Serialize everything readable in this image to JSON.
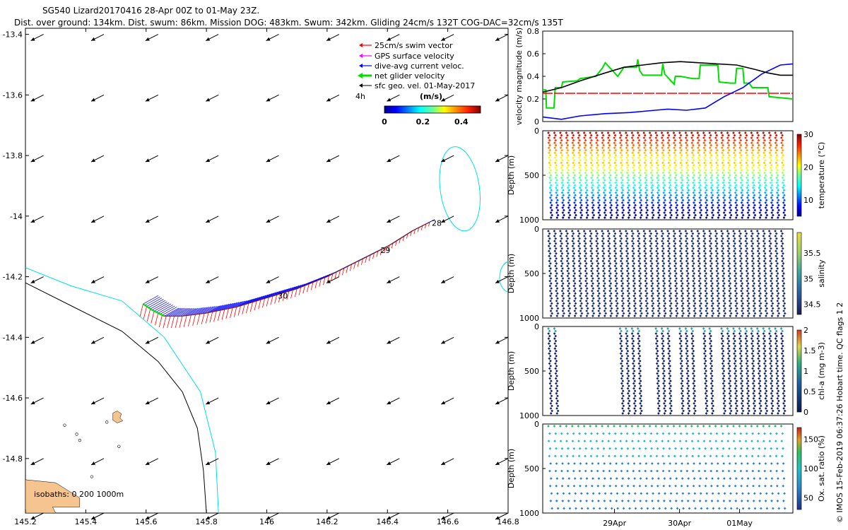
{
  "header": {
    "title_line1": "SG540 Lizard20170416 28-Apr 00Z to 01-May 23Z.",
    "title_line2": "Dist. over ground: 134km. Dist. swum: 86km. Mission DOG: 483km. Swum: 342km. Gliding 24cm/s 132T COG-DAC=32cm/s 135T"
  },
  "colors": {
    "swim": "#ff0000",
    "gps": "#ff00ff",
    "dac": "#0000ff",
    "net": "#00dd00",
    "geo": "#000000",
    "isobath_200": "#000000",
    "isobath_1000": "#00e0e0",
    "land": "#f5c48f"
  },
  "chart_data": [
    {
      "type": "scatter",
      "name": "track-map",
      "title": "SG540 Lizard20170416 28-Apr 00Z to 01-May 23Z.",
      "xlim": [
        145.2,
        146.8
      ],
      "ylim": [
        -14.98,
        -13.38
      ],
      "x_ticks": [
        145.2,
        145.4,
        145.6,
        145.8,
        146,
        146.2,
        146.4,
        146.6,
        146.8
      ],
      "x_tick_labels": [
        "145.2",
        "145.4",
        "145.6",
        "145.8",
        "146",
        "146.2",
        "146.4",
        "146.6",
        "146.8"
      ],
      "y_ticks": [
        -13.4,
        -13.6,
        -13.8,
        -14,
        -14.2,
        -14.4,
        -14.6,
        -14.8
      ],
      "y_tick_labels": [
        "-13.4",
        "-13.6",
        "-13.8",
        "-14",
        "-14.2",
        "-14.4",
        "-14.6",
        "-14.8"
      ],
      "legend": {
        "items": [
          "25cm/s swim vector",
          "GPS surface velocity",
          "dive-avg current veloc.",
          "net glider velocity",
          "sfc geo. vel. 01-May-2017"
        ],
        "interval_label": "4h",
        "colorbar_unit": "(m/s)",
        "colorbar_ticks": [
          "0",
          "0.2",
          "0.4"
        ],
        "colorbar_range": [
          0,
          0.5
        ]
      },
      "isobaths_label": "isobaths: 0   200  1000m",
      "day_labels": [
        {
          "text": "28",
          "lon": 146.54,
          "lat": -14.02
        },
        {
          "text": "29",
          "lon": 146.37,
          "lat": -14.11
        },
        {
          "text": "30",
          "lon": 146.03,
          "lat": -14.26
        }
      ],
      "track": {
        "lon": [
          146.54,
          146.48,
          146.4,
          146.3,
          146.2,
          146.1,
          146.0,
          145.9,
          145.8,
          145.72,
          145.66,
          145.62,
          145.59
        ],
        "lat": [
          -14.02,
          -14.05,
          -14.1,
          -14.15,
          -14.2,
          -14.24,
          -14.27,
          -14.3,
          -14.32,
          -14.33,
          -14.33,
          -14.31,
          -14.29
        ]
      },
      "isobath_200": {
        "lon": [
          145.2,
          145.36,
          145.52,
          145.64,
          145.72,
          145.77,
          145.79,
          145.8
        ],
        "lat": [
          -14.22,
          -14.3,
          -14.38,
          -14.48,
          -14.58,
          -14.7,
          -14.84,
          -14.98
        ]
      },
      "isobath_1000": {
        "lon": [
          145.2,
          145.35,
          145.52,
          145.66,
          145.78,
          145.83,
          145.84
        ],
        "lat": [
          -14.17,
          -14.23,
          -14.28,
          -14.4,
          -14.58,
          -14.78,
          -14.98
        ]
      },
      "isobath_reef_ellipse": {
        "lon": 146.64,
        "lat": -13.91,
        "rlon": 0.065,
        "rlat": 0.14
      },
      "geo_vel_grid": {
        "lons": [
          145.26,
          145.46,
          145.64,
          145.84,
          146.04,
          146.24,
          146.44,
          146.62,
          146.8
        ],
        "lats": [
          -13.4,
          -13.6,
          -13.8,
          -14.0,
          -14.2,
          -14.4,
          -14.6,
          -14.8,
          -14.98
        ],
        "u": -0.12,
        "v": -0.06
      }
    },
    {
      "type": "line",
      "name": "velocity-magnitude",
      "ylabel": "velocity magnitude (m/s)",
      "ylim": [
        0,
        0.8
      ],
      "y_ticks": [
        "0",
        "0.2",
        "0.4",
        "0.6",
        "0.8"
      ],
      "xlim": [
        0,
        4
      ],
      "series": [
        {
          "name": "net",
          "color": "#00dd00",
          "x": [
            0,
            0.05,
            0.06,
            0.18,
            0.2,
            0.3,
            0.32,
            0.55,
            0.6,
            0.85,
            0.95,
            1.0,
            1.2,
            1.3,
            1.5,
            1.52,
            1.55,
            1.6,
            1.9,
            1.92,
            1.95,
            2.1,
            2.12,
            2.2,
            2.4,
            2.5,
            2.52,
            2.8,
            2.82,
            3.0,
            3.08,
            3.1,
            3.2,
            3.22,
            3.3,
            3.35,
            3.6,
            3.62,
            4.0
          ],
          "y": [
            0.28,
            0.28,
            0.12,
            0.12,
            0.3,
            0.3,
            0.35,
            0.36,
            0.38,
            0.4,
            0.47,
            0.52,
            0.4,
            0.48,
            0.48,
            0.55,
            0.45,
            0.41,
            0.41,
            0.51,
            0.42,
            0.33,
            0.4,
            0.4,
            0.38,
            0.38,
            0.5,
            0.5,
            0.35,
            0.34,
            0.34,
            0.47,
            0.47,
            0.34,
            0.34,
            0.3,
            0.3,
            0.22,
            0.2
          ]
        },
        {
          "name": "swim",
          "color": "#ff0000",
          "x": [
            0,
            4
          ],
          "y": [
            0.25,
            0.25
          ]
        },
        {
          "name": "dac",
          "color": "#0000ff",
          "x": [
            0,
            0.3,
            0.6,
            1.0,
            1.4,
            1.8,
            2.0,
            2.3,
            2.6,
            2.9,
            3.2,
            3.5,
            3.8,
            4.0
          ],
          "y": [
            0.04,
            0.02,
            0.05,
            0.07,
            0.08,
            0.1,
            0.11,
            0.1,
            0.12,
            0.22,
            0.3,
            0.42,
            0.5,
            0.51
          ]
        },
        {
          "name": "geo",
          "color": "#000000",
          "x": [
            0,
            0.3,
            0.6,
            1.0,
            1.3,
            1.6,
            1.9,
            2.2,
            2.5,
            2.8,
            3.1,
            3.4,
            3.6,
            3.8,
            4.0
          ],
          "y": [
            0.26,
            0.3,
            0.36,
            0.43,
            0.48,
            0.5,
            0.52,
            0.53,
            0.52,
            0.51,
            0.5,
            0.46,
            0.43,
            0.41,
            0.41
          ]
        }
      ]
    },
    {
      "type": "scatter",
      "name": "temperature-section",
      "ylabel": "Depth (m)",
      "y_ticks": [
        "0",
        "500",
        "1000"
      ],
      "colorbar_label": "temperature (°C)",
      "colorbar_ticks": [
        "30",
        "20",
        "10"
      ],
      "colorbar_range": [
        5,
        30
      ],
      "casts": 40,
      "data_gaps": []
    },
    {
      "type": "scatter",
      "name": "salinity-section",
      "ylabel": "Depth (m)",
      "y_ticks": [
        "0",
        "500",
        "1000"
      ],
      "colorbar_label": "salinity",
      "colorbar_ticks": [
        "35.5",
        "35",
        "34.5"
      ],
      "colorbar_range": [
        34.3,
        35.9
      ],
      "casts": 40,
      "data_gaps": []
    },
    {
      "type": "scatter",
      "name": "chla-section",
      "ylabel": "Depth (m)",
      "y_ticks": [
        "0",
        "500",
        "1000"
      ],
      "colorbar_label": "chl-a (mg m-3)",
      "colorbar_ticks": [
        "2",
        "1.5",
        "1",
        "0.5",
        "0"
      ],
      "colorbar_range": [
        0,
        2
      ],
      "casts": 40,
      "data_gaps": [
        [
          2,
          12
        ],
        [
          16,
          18
        ],
        [
          21,
          22
        ],
        [
          25,
          26
        ],
        [
          28,
          29
        ]
      ]
    },
    {
      "type": "scatter",
      "name": "oxygen-section",
      "ylabel": "Depth (m)",
      "y_ticks": [
        "0",
        "500",
        "1000"
      ],
      "colorbar_label": "Ox. sat. ratio (%)",
      "colorbar_ticks": [
        "150",
        "100",
        "50"
      ],
      "colorbar_range": [
        30,
        170
      ],
      "x_ticks": [
        "29Apr",
        "30Apr",
        "01May"
      ],
      "casts": 40,
      "data_gaps": []
    }
  ],
  "side_text": "© IMOS 15-Feb-2019 06:37:26 Hobart time. QC flags 1  2"
}
